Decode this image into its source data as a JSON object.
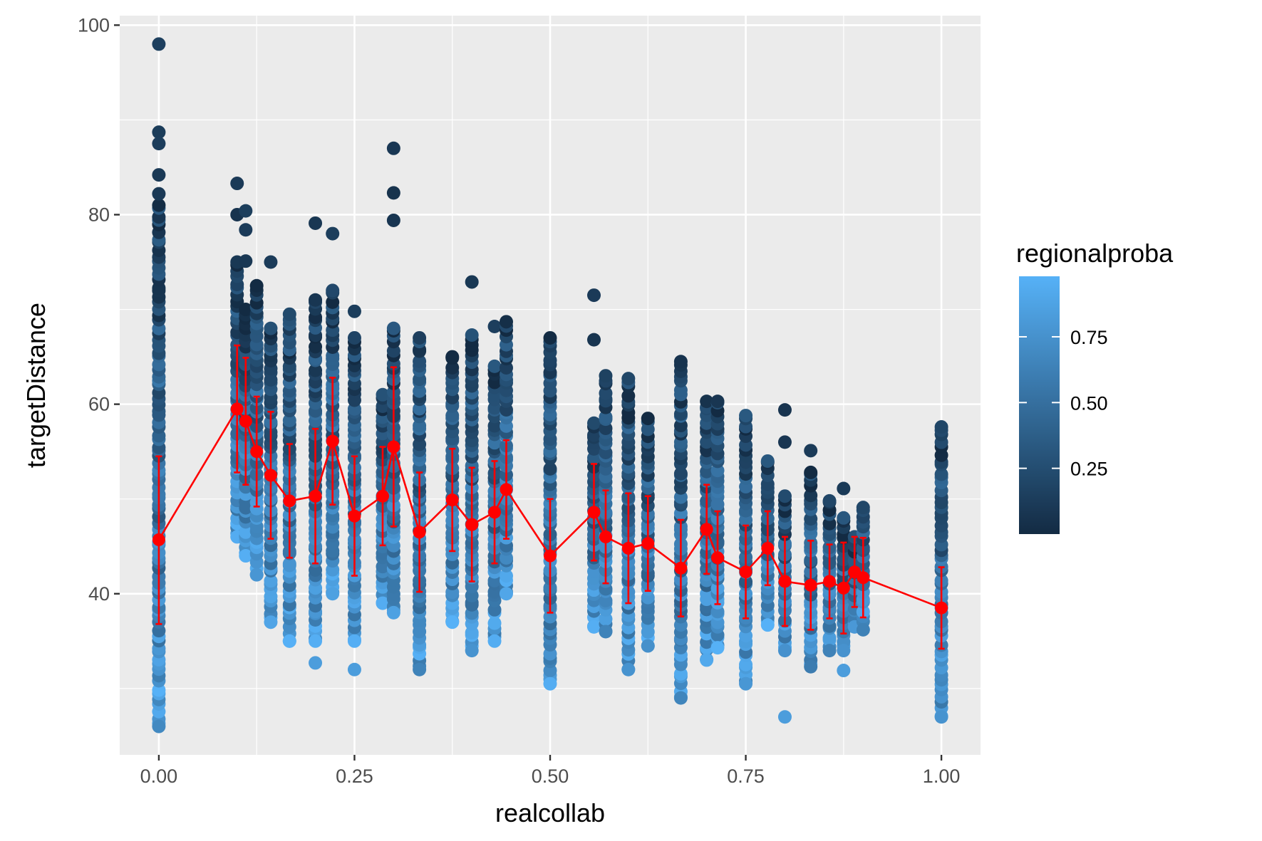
{
  "chart_data": {
    "type": "scatter",
    "xlabel": "realcollab",
    "ylabel": "targetDistance",
    "xlim": [
      -0.05,
      1.05
    ],
    "ylim": [
      23,
      101
    ],
    "x_ticks": [
      0.0,
      0.25,
      0.5,
      0.75,
      1.0
    ],
    "x_tick_labels": [
      "0.00",
      "0.25",
      "0.50",
      "0.75",
      "1.00"
    ],
    "y_ticks": [
      40,
      60,
      80,
      100
    ],
    "y_tick_labels": [
      "40",
      "60",
      "80",
      "100"
    ],
    "grid": true,
    "color_scale": {
      "name": "regionalproba",
      "low_color": "#132B43",
      "high_color": "#56B1F7",
      "range": [
        0.0,
        0.98
      ],
      "breaks": [
        0.25,
        0.5,
        0.75
      ],
      "break_labels": [
        "0.25",
        "0.50",
        "0.75"
      ]
    },
    "legend_position": "right",
    "scatter_columns": [
      {
        "x": 0.0,
        "ymin": 26,
        "ymax": 81,
        "outliers": [
          98,
          88.7,
          87.5,
          84.2,
          82.2
        ]
      },
      {
        "x": 0.1,
        "ymin": 46,
        "ymax": 75,
        "outliers": [
          83.3,
          80
        ]
      },
      {
        "x": 0.111,
        "ymin": 44,
        "ymax": 70,
        "outliers": [
          80.4,
          78.4,
          75.1
        ]
      },
      {
        "x": 0.125,
        "ymin": 42,
        "ymax": 72.5,
        "outliers": []
      },
      {
        "x": 0.143,
        "ymin": 37,
        "ymax": 68,
        "outliers": [
          75
        ]
      },
      {
        "x": 0.167,
        "ymin": 35,
        "ymax": 69.5,
        "outliers": []
      },
      {
        "x": 0.2,
        "ymin": 35,
        "ymax": 71,
        "outliers": [
          79.1,
          32.7
        ]
      },
      {
        "x": 0.222,
        "ymin": 40,
        "ymax": 72,
        "outliers": [
          78
        ]
      },
      {
        "x": 0.25,
        "ymin": 35,
        "ymax": 67,
        "outliers": [
          69.8,
          32
        ]
      },
      {
        "x": 0.286,
        "ymin": 39,
        "ymax": 61,
        "outliers": []
      },
      {
        "x": 0.3,
        "ymin": 38,
        "ymax": 68,
        "outliers": [
          87,
          82.3,
          79.4
        ]
      },
      {
        "x": 0.333,
        "ymin": 32,
        "ymax": 67,
        "outliers": []
      },
      {
        "x": 0.375,
        "ymin": 37,
        "ymax": 65,
        "outliers": []
      },
      {
        "x": 0.4,
        "ymin": 34,
        "ymax": 67.3,
        "outliers": [
          72.9
        ]
      },
      {
        "x": 0.429,
        "ymin": 35,
        "ymax": 64,
        "outliers": [
          68.2
        ]
      },
      {
        "x": 0.444,
        "ymin": 40,
        "ymax": 68.7,
        "outliers": []
      },
      {
        "x": 0.5,
        "ymin": 30.5,
        "ymax": 67,
        "outliers": []
      },
      {
        "x": 0.556,
        "ymin": 36.5,
        "ymax": 58,
        "outliers": [
          71.5,
          66.8
        ]
      },
      {
        "x": 0.571,
        "ymin": 36,
        "ymax": 63,
        "outliers": []
      },
      {
        "x": 0.6,
        "ymin": 32,
        "ymax": 62.7,
        "outliers": []
      },
      {
        "x": 0.625,
        "ymin": 34.5,
        "ymax": 58.5,
        "outliers": []
      },
      {
        "x": 0.667,
        "ymin": 29,
        "ymax": 64.5,
        "outliers": []
      },
      {
        "x": 0.7,
        "ymin": 33,
        "ymax": 60.3,
        "outliers": []
      },
      {
        "x": 0.714,
        "ymin": 34.3,
        "ymax": 60.3,
        "outliers": []
      },
      {
        "x": 0.75,
        "ymin": 30.5,
        "ymax": 58.8,
        "outliers": []
      },
      {
        "x": 0.778,
        "ymin": 36.7,
        "ymax": 54,
        "outliers": []
      },
      {
        "x": 0.8,
        "ymin": 34,
        "ymax": 50.3,
        "outliers": [
          59.4,
          56,
          27
        ]
      },
      {
        "x": 0.833,
        "ymin": 32.3,
        "ymax": 52.8,
        "outliers": [
          55.1
        ]
      },
      {
        "x": 0.857,
        "ymin": 34,
        "ymax": 49.8,
        "outliers": []
      },
      {
        "x": 0.875,
        "ymin": 34,
        "ymax": 48,
        "outliers": [
          51.1,
          31.9
        ]
      },
      {
        "x": 0.889,
        "ymin": 36.5,
        "ymax": 46,
        "outliers": []
      },
      {
        "x": 0.9,
        "ymin": 36.2,
        "ymax": 49.1,
        "outliers": []
      },
      {
        "x": 1.0,
        "ymin": 27,
        "ymax": 57.6,
        "outliers": []
      }
    ],
    "series": [
      {
        "color": "#FF0000",
        "points": [
          {
            "x": 0.0,
            "y": 45.7,
            "lo": 36.8,
            "hi": 54.5
          },
          {
            "x": 0.1,
            "y": 59.5,
            "lo": 52.8,
            "hi": 66.2
          },
          {
            "x": 0.111,
            "y": 58.2,
            "lo": 51.5,
            "hi": 64.9
          },
          {
            "x": 0.125,
            "y": 55.0,
            "lo": 49.2,
            "hi": 60.8
          },
          {
            "x": 0.143,
            "y": 52.5,
            "lo": 45.8,
            "hi": 59.2
          },
          {
            "x": 0.167,
            "y": 49.8,
            "lo": 43.8,
            "hi": 55.8
          },
          {
            "x": 0.2,
            "y": 50.3,
            "lo": 43.2,
            "hi": 57.4
          },
          {
            "x": 0.222,
            "y": 56.1,
            "lo": 49.4,
            "hi": 62.8
          },
          {
            "x": 0.25,
            "y": 48.2,
            "lo": 41.9,
            "hi": 54.5
          },
          {
            "x": 0.286,
            "y": 50.3,
            "lo": 45.1,
            "hi": 55.5
          },
          {
            "x": 0.3,
            "y": 55.5,
            "lo": 47.1,
            "hi": 63.9
          },
          {
            "x": 0.333,
            "y": 46.5,
            "lo": 40.2,
            "hi": 52.8
          },
          {
            "x": 0.375,
            "y": 49.9,
            "lo": 44.5,
            "hi": 55.3
          },
          {
            "x": 0.4,
            "y": 47.3,
            "lo": 41.3,
            "hi": 53.3
          },
          {
            "x": 0.429,
            "y": 48.6,
            "lo": 43.2,
            "hi": 54.0
          },
          {
            "x": 0.444,
            "y": 51.0,
            "lo": 45.8,
            "hi": 56.2
          },
          {
            "x": 0.5,
            "y": 44.0,
            "lo": 38.0,
            "hi": 50.0
          },
          {
            "x": 0.556,
            "y": 48.6,
            "lo": 43.5,
            "hi": 53.7
          },
          {
            "x": 0.571,
            "y": 46.0,
            "lo": 41.1,
            "hi": 50.9
          },
          {
            "x": 0.6,
            "y": 44.8,
            "lo": 39.0,
            "hi": 50.6
          },
          {
            "x": 0.625,
            "y": 45.3,
            "lo": 40.3,
            "hi": 50.3
          },
          {
            "x": 0.667,
            "y": 42.7,
            "lo": 37.6,
            "hi": 47.8
          },
          {
            "x": 0.7,
            "y": 46.8,
            "lo": 42.1,
            "hi": 51.5
          },
          {
            "x": 0.714,
            "y": 43.8,
            "lo": 38.9,
            "hi": 48.7
          },
          {
            "x": 0.75,
            "y": 42.3,
            "lo": 37.4,
            "hi": 47.2
          },
          {
            "x": 0.778,
            "y": 44.8,
            "lo": 40.9,
            "hi": 48.7
          },
          {
            "x": 0.8,
            "y": 41.3,
            "lo": 36.6,
            "hi": 46.0
          },
          {
            "x": 0.833,
            "y": 40.9,
            "lo": 36.2,
            "hi": 45.6
          },
          {
            "x": 0.857,
            "y": 41.3,
            "lo": 37.4,
            "hi": 45.2
          },
          {
            "x": 0.875,
            "y": 40.6,
            "lo": 35.8,
            "hi": 45.4
          },
          {
            "x": 0.889,
            "y": 42.3,
            "lo": 38.6,
            "hi": 46.0
          },
          {
            "x": 0.9,
            "y": 41.7,
            "lo": 37.5,
            "hi": 45.9
          },
          {
            "x": 1.0,
            "y": 38.5,
            "lo": 34.2,
            "hi": 42.8
          }
        ]
      }
    ]
  }
}
